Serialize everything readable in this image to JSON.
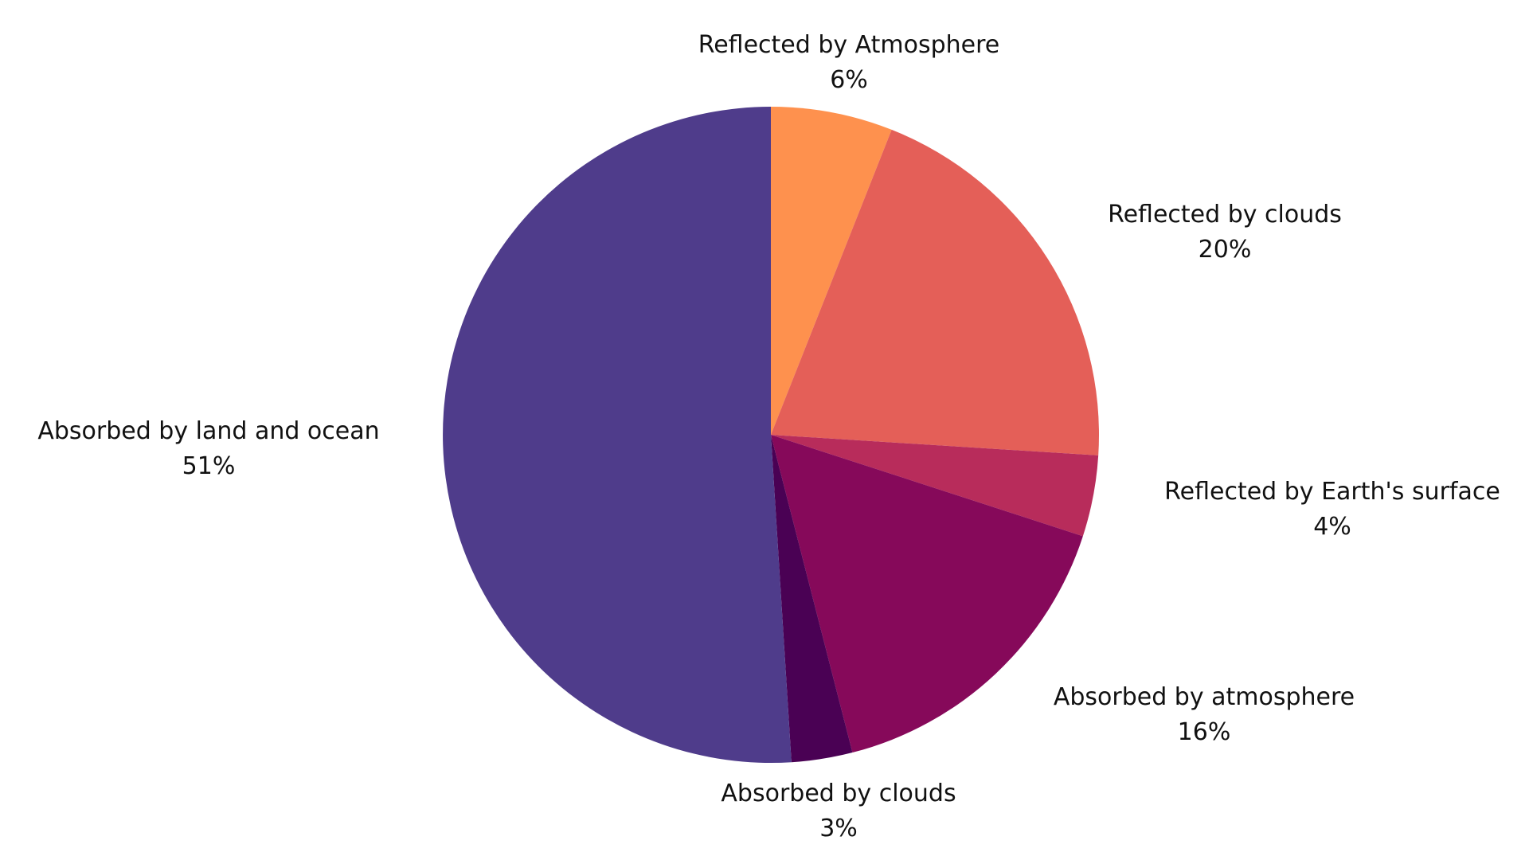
{
  "chart_data": {
    "type": "pie",
    "start_angle": "12 o'clock",
    "direction": "clockwise",
    "slices": [
      {
        "label": "Reflected by Atmosphere",
        "value": 6,
        "value_label": "6%",
        "color": "#fe914e"
      },
      {
        "label": "Reflected by clouds",
        "value": 20,
        "value_label": "20%",
        "color": "#e45f58"
      },
      {
        "label": "Reflected by Earth's surface",
        "value": 4,
        "value_label": "4%",
        "color": "#b82c5b"
      },
      {
        "label": "Absorbed by atmosphere",
        "value": 16,
        "value_label": "16%",
        "color": "#86095a"
      },
      {
        "label": "Absorbed by clouds",
        "value": 3,
        "value_label": "3%",
        "color": "#4a0154"
      },
      {
        "label": "Absorbed by land and ocean",
        "value": 51,
        "value_label": "51%",
        "color": "#4f3c8b"
      }
    ]
  }
}
